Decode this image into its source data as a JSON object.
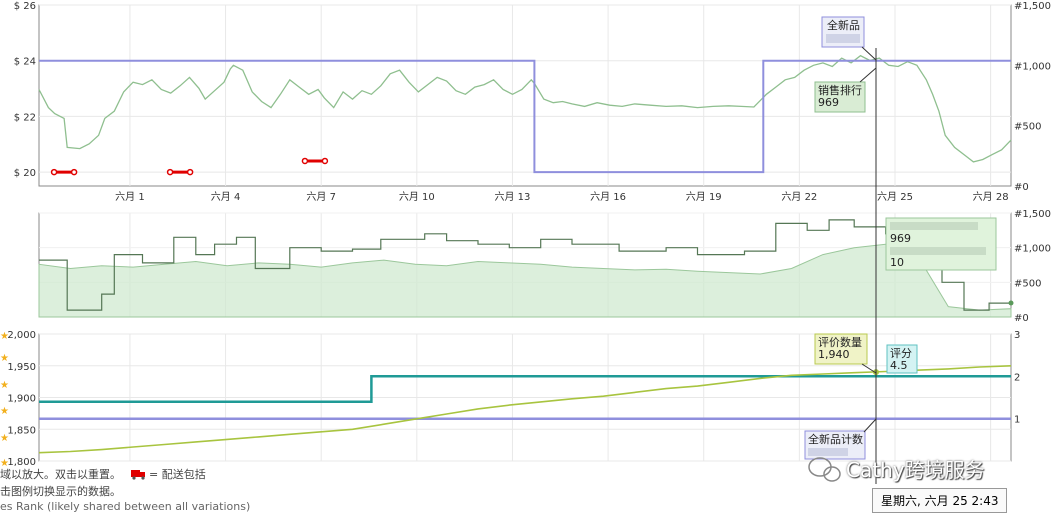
{
  "chart_data": [
    {
      "type": "line",
      "name": "price-panel",
      "x_tick_labels": [
        "六月 1",
        "六月 4",
        "六月 7",
        "六月 10",
        "六月 13",
        "六月 16",
        "六月 19",
        "六月 22",
        "六月 25",
        "六月 28"
      ],
      "y_left_ticks": [
        "$ 26",
        "$ 24",
        "$ 22",
        "$ 20"
      ],
      "y_right_ticks": [
        "#1,500",
        "#1,000",
        "#500",
        "#0"
      ],
      "ylim_left": [
        19,
        26
      ],
      "ylim_right": [
        0,
        1500
      ],
      "colors": {
        "new_price": "#8f8fdd",
        "sales_rank": "#8fbf8f",
        "deal": "#e00000"
      },
      "series": [
        {
          "name": "全新品",
          "color": "#8f8fdd",
          "points": [
            [
              0,
              24
            ],
            [
              15.8,
              24
            ],
            [
              15.8,
              20
            ],
            [
              23.1,
              20
            ],
            [
              23.1,
              24
            ],
            [
              31,
              24
            ]
          ]
        },
        {
          "name": "销售排行",
          "color": "#8fbf8f",
          "points": [
            [
              0,
              800
            ],
            [
              0.3,
              650
            ],
            [
              0.5,
              600
            ],
            [
              0.8,
              560
            ],
            [
              0.9,
              320
            ],
            [
              1.3,
              310
            ],
            [
              1.6,
              350
            ],
            [
              1.9,
              420
            ],
            [
              2.1,
              560
            ],
            [
              2.4,
              620
            ],
            [
              2.7,
              780
            ],
            [
              3.0,
              860
            ],
            [
              3.3,
              840
            ],
            [
              3.6,
              880
            ],
            [
              3.9,
              800
            ],
            [
              4.2,
              770
            ],
            [
              4.5,
              830
            ],
            [
              4.8,
              900
            ],
            [
              5.1,
              810
            ],
            [
              5.3,
              720
            ],
            [
              5.6,
              790
            ],
            [
              5.9,
              860
            ],
            [
              6.1,
              970
            ],
            [
              6.2,
              1000
            ],
            [
              6.5,
              960
            ],
            [
              6.8,
              780
            ],
            [
              7.1,
              700
            ],
            [
              7.4,
              650
            ],
            [
              7.7,
              760
            ],
            [
              8.0,
              880
            ],
            [
              8.3,
              820
            ],
            [
              8.6,
              760
            ],
            [
              8.9,
              800
            ],
            [
              9.1,
              730
            ],
            [
              9.4,
              650
            ],
            [
              9.7,
              780
            ],
            [
              10.0,
              720
            ],
            [
              10.3,
              790
            ],
            [
              10.6,
              760
            ],
            [
              10.9,
              830
            ],
            [
              11.2,
              930
            ],
            [
              11.5,
              960
            ],
            [
              11.8,
              860
            ],
            [
              12.1,
              780
            ],
            [
              12.4,
              840
            ],
            [
              12.7,
              900
            ],
            [
              13.0,
              870
            ],
            [
              13.3,
              790
            ],
            [
              13.6,
              760
            ],
            [
              13.9,
              820
            ],
            [
              14.2,
              840
            ],
            [
              14.5,
              880
            ],
            [
              14.8,
              800
            ],
            [
              15.1,
              760
            ],
            [
              15.4,
              800
            ],
            [
              15.7,
              880
            ],
            [
              15.8,
              850
            ],
            [
              16.1,
              720
            ],
            [
              16.4,
              690
            ],
            [
              16.7,
              700
            ],
            [
              17.0,
              680
            ],
            [
              17.4,
              660
            ],
            [
              17.8,
              690
            ],
            [
              18.2,
              670
            ],
            [
              18.6,
              660
            ],
            [
              19.0,
              680
            ],
            [
              19.5,
              670
            ],
            [
              20.0,
              660
            ],
            [
              20.5,
              665
            ],
            [
              21.0,
              650
            ],
            [
              21.5,
              660
            ],
            [
              22.0,
              665
            ],
            [
              22.4,
              660
            ],
            [
              22.8,
              655
            ],
            [
              23.2,
              760
            ],
            [
              23.5,
              820
            ],
            [
              23.8,
              880
            ],
            [
              24.1,
              900
            ],
            [
              24.4,
              960
            ],
            [
              24.7,
              1000
            ],
            [
              25.0,
              1020
            ],
            [
              25.3,
              990
            ],
            [
              25.6,
              1060
            ],
            [
              25.9,
              1020
            ],
            [
              26.2,
              1080
            ],
            [
              26.5,
              1040
            ],
            [
              26.8,
              1060
            ],
            [
              27.1,
              1000
            ],
            [
              27.4,
              990
            ],
            [
              27.7,
              1030
            ],
            [
              28.0,
              1000
            ],
            [
              28.3,
              880
            ],
            [
              28.5,
              760
            ],
            [
              28.7,
              620
            ],
            [
              28.9,
              420
            ],
            [
              29.2,
              320
            ],
            [
              29.6,
              240
            ],
            [
              29.8,
              200
            ],
            [
              30.1,
              220
            ],
            [
              30.4,
              260
            ],
            [
              30.7,
              300
            ],
            [
              31,
              380
            ]
          ]
        }
      ],
      "deal_markers": [
        [
          0.8,
          20
        ],
        [
          4.5,
          20
        ],
        [
          8.8,
          20.4
        ]
      ],
      "annotations": {
        "new_label": "全新品",
        "rank_label": "销售排行",
        "rank_value": "969"
      }
    },
    {
      "type": "area",
      "name": "rank-detail-panel",
      "y_right_ticks": [
        "#1,500",
        "#1,000",
        "#500",
        "#0"
      ],
      "ylim_right": [
        0,
        1500
      ],
      "colors": {
        "line": "#557755",
        "fill": "#cde8cd"
      },
      "area_points": [
        [
          0,
          760
        ],
        [
          1,
          700
        ],
        [
          2,
          740
        ],
        [
          3,
          720
        ],
        [
          4,
          760
        ],
        [
          5,
          800
        ],
        [
          6,
          740
        ],
        [
          7,
          780
        ],
        [
          8,
          760
        ],
        [
          9,
          720
        ],
        [
          10,
          780
        ],
        [
          11,
          820
        ],
        [
          12,
          760
        ],
        [
          13,
          740
        ],
        [
          14,
          800
        ],
        [
          15,
          780
        ],
        [
          16,
          760
        ],
        [
          17,
          720
        ],
        [
          18,
          700
        ],
        [
          19,
          680
        ],
        [
          20,
          690
        ],
        [
          21,
          660
        ],
        [
          22,
          640
        ],
        [
          23,
          620
        ],
        [
          24,
          700
        ],
        [
          25,
          900
        ],
        [
          26,
          1000
        ],
        [
          27,
          1050
        ],
        [
          28,
          900
        ],
        [
          29,
          150
        ],
        [
          30,
          100
        ],
        [
          31,
          120
        ]
      ],
      "line_points": [
        [
          0,
          820
        ],
        [
          0.9,
          820
        ],
        [
          0.9,
          100
        ],
        [
          2.0,
          100
        ],
        [
          2.0,
          330
        ],
        [
          2.4,
          330
        ],
        [
          2.4,
          900
        ],
        [
          3.3,
          900
        ],
        [
          3.3,
          780
        ],
        [
          4.3,
          780
        ],
        [
          4.3,
          1150
        ],
        [
          5.0,
          1150
        ],
        [
          5.0,
          900
        ],
        [
          5.6,
          900
        ],
        [
          5.6,
          1050
        ],
        [
          6.3,
          1050
        ],
        [
          6.3,
          1150
        ],
        [
          6.9,
          1150
        ],
        [
          6.9,
          700
        ],
        [
          8.0,
          700
        ],
        [
          8.0,
          1000
        ],
        [
          9.0,
          1000
        ],
        [
          9.0,
          950
        ],
        [
          10.0,
          950
        ],
        [
          10.0,
          980
        ],
        [
          10.9,
          980
        ],
        [
          10.9,
          1120
        ],
        [
          12.3,
          1120
        ],
        [
          12.3,
          1200
        ],
        [
          13.0,
          1200
        ],
        [
          13.0,
          1100
        ],
        [
          14.0,
          1100
        ],
        [
          14.0,
          1050
        ],
        [
          15.0,
          1050
        ],
        [
          15.0,
          1000
        ],
        [
          16.0,
          1000
        ],
        [
          16.0,
          1120
        ],
        [
          17.0,
          1120
        ],
        [
          17.0,
          1050
        ],
        [
          18.5,
          1050
        ],
        [
          18.5,
          950
        ],
        [
          20.0,
          950
        ],
        [
          20.0,
          1000
        ],
        [
          21.0,
          1000
        ],
        [
          21.0,
          900
        ],
        [
          22.5,
          900
        ],
        [
          22.5,
          950
        ],
        [
          23.5,
          950
        ],
        [
          23.5,
          1350
        ],
        [
          24.5,
          1350
        ],
        [
          24.5,
          1250
        ],
        [
          25.2,
          1250
        ],
        [
          25.2,
          1400
        ],
        [
          26.0,
          1400
        ],
        [
          26.0,
          1300
        ],
        [
          27.0,
          1300
        ],
        [
          27.0,
          1200
        ],
        [
          28.0,
          1200
        ],
        [
          28.0,
          1000
        ],
        [
          28.8,
          1000
        ],
        [
          28.8,
          500
        ],
        [
          29.5,
          500
        ],
        [
          29.5,
          100
        ],
        [
          30.3,
          100
        ],
        [
          30.3,
          200
        ],
        [
          31,
          200
        ]
      ],
      "annotations": {
        "rank_value": "969",
        "count_value": "10"
      }
    },
    {
      "type": "line",
      "name": "reviews-panel",
      "y_left_ticks": [
        "2,000",
        "1,950",
        "1,900",
        "1,850",
        "1,800"
      ],
      "y_right_ticks": [
        "3",
        "2",
        "1"
      ],
      "ylim_left": [
        1800,
        2000
      ],
      "ylim_right": [
        0,
        3
      ],
      "colors": {
        "reviews": "#a8c43f",
        "rating": "#1f9a96",
        "new_count": "#8f8fdd"
      },
      "series": [
        {
          "name": "评价数量",
          "color": "#a8c43f",
          "points": [
            [
              0,
              1813
            ],
            [
              1,
              1815
            ],
            [
              2,
              1818
            ],
            [
              3,
              1822
            ],
            [
              4,
              1826
            ],
            [
              5,
              1830
            ],
            [
              6,
              1834
            ],
            [
              7,
              1838
            ],
            [
              8,
              1842
            ],
            [
              9,
              1846
            ],
            [
              10,
              1850
            ],
            [
              11,
              1858
            ],
            [
              12,
              1866
            ],
            [
              13,
              1874
            ],
            [
              14,
              1882
            ],
            [
              15,
              1888
            ],
            [
              16,
              1893
            ],
            [
              17,
              1898
            ],
            [
              18,
              1902
            ],
            [
              19,
              1908
            ],
            [
              20,
              1914
            ],
            [
              21,
              1918
            ],
            [
              22,
              1924
            ],
            [
              23,
              1930
            ],
            [
              24,
              1935
            ],
            [
              25,
              1937
            ],
            [
              26,
              1939
            ],
            [
              27,
              1941
            ],
            [
              28,
              1943
            ],
            [
              29,
              1945
            ],
            [
              30,
              1948
            ],
            [
              31,
              1950
            ]
          ]
        },
        {
          "name": "评分",
          "color": "#1f9a96",
          "points": [
            [
              0,
              1.4
            ],
            [
              10.6,
              1.4
            ],
            [
              10.6,
              2.0
            ],
            [
              31,
              2.0
            ]
          ]
        },
        {
          "name": "全新品计数",
          "color": "#8f8fdd",
          "points": [
            [
              0,
              1.0
            ],
            [
              31,
              1.0
            ]
          ]
        }
      ],
      "annotations": {
        "reviews_label": "评价数量",
        "reviews_value": "1,940",
        "rating_label": "评分",
        "rating_value": "4.5",
        "new_count_label": "全新品计数"
      }
    }
  ],
  "footer": {
    "zoom_hint": "域以放大。双击以重置。",
    "shipping_legend": "= 配送包括",
    "legend_hint": "击图例切换显示的数据。",
    "sales_rank_note": "es Rank   (likely shared between all variations)"
  },
  "watermark": "Cathy跨境服务",
  "hover_time": "星期六, 六月 25 2:43"
}
